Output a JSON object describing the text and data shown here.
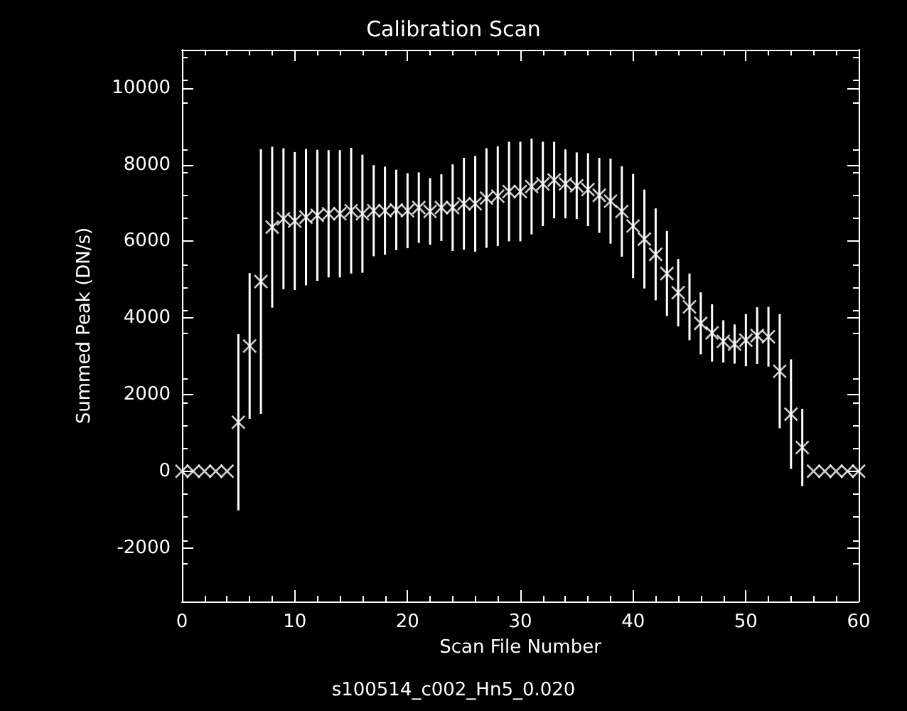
{
  "chart_data": {
    "type": "scatter",
    "title": "Calibration Scan",
    "xlabel": "Scan File Number",
    "ylabel": "Summed Peak (DN/s)",
    "annotations": [
      "s100514_c002_Hn5_0.020"
    ],
    "x": [
      0,
      1,
      2,
      3,
      4,
      5,
      6,
      7,
      8,
      9,
      10,
      11,
      12,
      13,
      14,
      15,
      16,
      17,
      18,
      19,
      20,
      21,
      22,
      23,
      24,
      25,
      26,
      27,
      28,
      29,
      30,
      31,
      32,
      33,
      34,
      35,
      36,
      37,
      38,
      39,
      40,
      41,
      42,
      43,
      44,
      45,
      46,
      47,
      48,
      49,
      50,
      51,
      52,
      53,
      54,
      55,
      56,
      57,
      58,
      59,
      60
    ],
    "series": [
      {
        "color": "#ffffff",
        "values": [
          0,
          0,
          0,
          0,
          0,
          1280,
          3270,
          4950,
          6370,
          6590,
          6530,
          6630,
          6680,
          6720,
          6720,
          6800,
          6720,
          6800,
          6800,
          6820,
          6800,
          6880,
          6780,
          6880,
          6880,
          6980,
          6980,
          7130,
          7180,
          7300,
          7300,
          7430,
          7500,
          7600,
          7500,
          7450,
          7350,
          7200,
          7050,
          6780,
          6400,
          6060,
          5660,
          5160,
          4660,
          4290,
          3860,
          3610,
          3390,
          3320,
          3420,
          3540,
          3510,
          2610,
          1490,
          620,
          0,
          0,
          0,
          0,
          0
        ],
        "errors": [
          null,
          null,
          null,
          null,
          null,
          2300,
          1900,
          3450,
          2100,
          1840,
          1800,
          1780,
          1710,
          1660,
          1660,
          1640,
          1540,
          1190,
          1150,
          1050,
          980,
          920,
          870,
          870,
          1130,
          1200,
          1250,
          1300,
          1300,
          1300,
          1300,
          1250,
          1100,
          1000,
          900,
          870,
          950,
          980,
          1110,
          1180,
          1360,
          1290,
          1200,
          1110,
          880,
          870,
          810,
          750,
          550,
          510,
          680,
          740,
          780,
          1490,
          1430,
          1010,
          null,
          null,
          null,
          null,
          null
        ]
      }
    ],
    "xlim": [
      0,
      60
    ],
    "xticks": [
      0,
      10,
      20,
      30,
      40,
      50,
      60
    ],
    "ylim": [
      -3400,
      11000
    ],
    "yticks": [
      -2000,
      0,
      2000,
      4000,
      6000,
      8000,
      10000
    ],
    "marker": "cross"
  }
}
